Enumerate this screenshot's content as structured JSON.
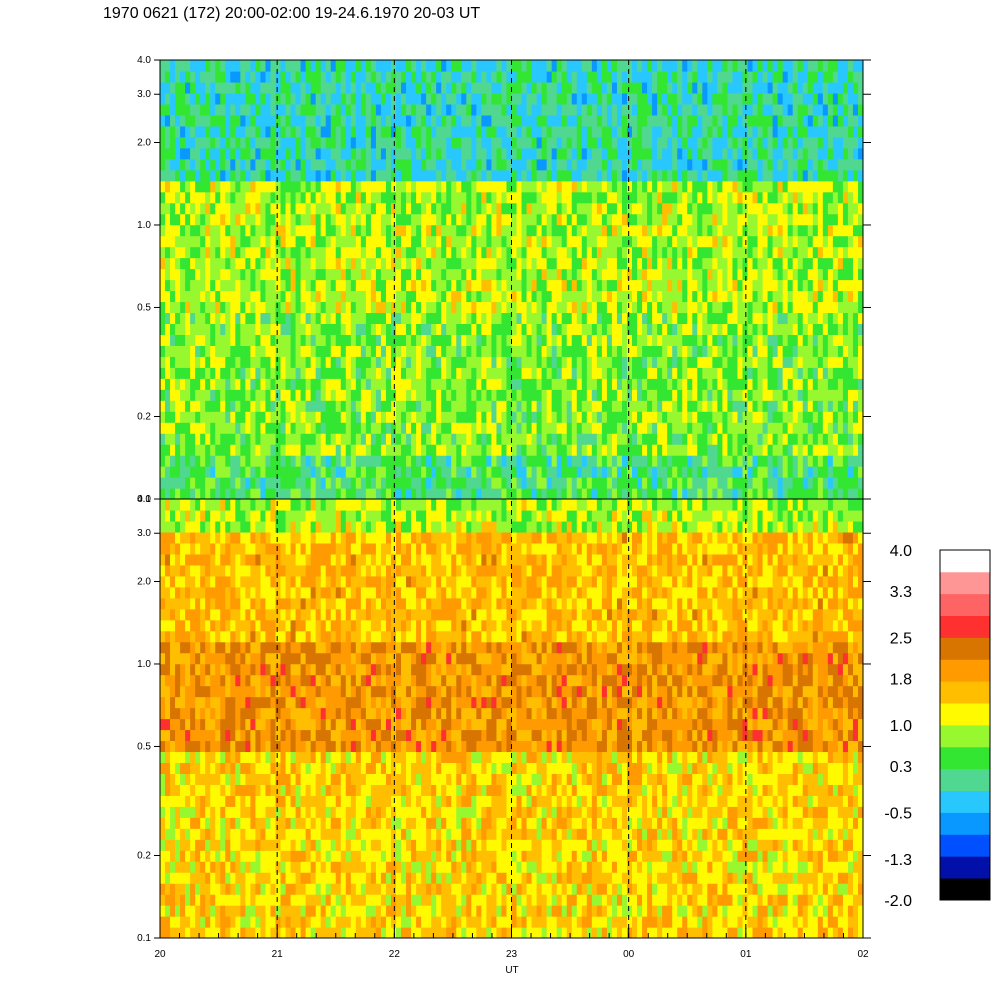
{
  "title": "1970 0621 (172) 20:00-02:00 19-24.6.1970  20-03 UT",
  "colors": {
    "palette": [
      "#000000",
      "#0010a8",
      "#0050ff",
      "#0898ff",
      "#28c8ff",
      "#50d890",
      "#32e632",
      "#98f830",
      "#fffa00",
      "#ffbe00",
      "#ff9a00",
      "#d87400",
      "#ff3030",
      "#ff6464",
      "#ff9696",
      "#ffffff"
    ]
  },
  "chart_data": {
    "type": "heatmap",
    "title": "1970 0621 (172) 20:00-02:00 19-24.6.1970  20-03 UT",
    "xlabel": "UT",
    "x_ticks": [
      "20",
      "21",
      "22",
      "23",
      "00",
      "01",
      "02"
    ],
    "x_range_hours": [
      20,
      26
    ],
    "dashed_vertical_lines_at": [
      "21",
      "22",
      "23",
      "00",
      "01"
    ],
    "panels": [
      {
        "name": "top",
        "y_scale": "log",
        "ylim": [
          0.1,
          4.0
        ],
        "y_ticks": [
          "0.1",
          "0.2",
          "0.5",
          "1.0",
          "2.0",
          "3.0",
          "4.0"
        ],
        "y_tick_values": [
          0.1,
          0.2,
          0.5,
          1.0,
          2.0,
          3.0,
          4.0
        ],
        "dominant_levels_by_band": [
          {
            "y": [
              0.1,
              0.15
            ],
            "level": 0.3
          },
          {
            "y": [
              0.15,
              0.5
            ],
            "level": 0.7
          },
          {
            "y": [
              0.5,
              1.5
            ],
            "level": 0.9
          },
          {
            "y": [
              1.5,
              4.0
            ],
            "level": 0.0
          }
        ]
      },
      {
        "name": "bottom",
        "y_scale": "log",
        "ylim": [
          0.1,
          4.0
        ],
        "y_ticks": [
          "0.1",
          "0.2",
          "0.5",
          "1.0",
          "2.0",
          "3.0",
          "4.0"
        ],
        "y_tick_values": [
          0.1,
          0.2,
          0.5,
          1.0,
          2.0,
          3.0,
          4.0
        ],
        "dominant_levels_by_band": [
          {
            "y": [
              0.1,
              0.5
            ],
            "level": 1.4
          },
          {
            "y": [
              0.5,
              1.2
            ],
            "level": 2.0
          },
          {
            "y": [
              1.2,
              3.0
            ],
            "level": 1.6
          },
          {
            "y": [
              3.0,
              4.0
            ],
            "level": 0.9
          }
        ]
      }
    ],
    "colorbar": {
      "labels": [
        "4.0",
        "3.3",
        "2.5",
        "1.8",
        "1.0",
        "0.3",
        "-0.5",
        "-1.3",
        "-2.0"
      ],
      "label_values": [
        4.0,
        3.3,
        2.5,
        1.8,
        1.0,
        0.3,
        -0.5,
        -1.3,
        -2.0
      ],
      "range": [
        -2.0,
        4.0
      ],
      "levels": 16
    },
    "grid": false
  }
}
